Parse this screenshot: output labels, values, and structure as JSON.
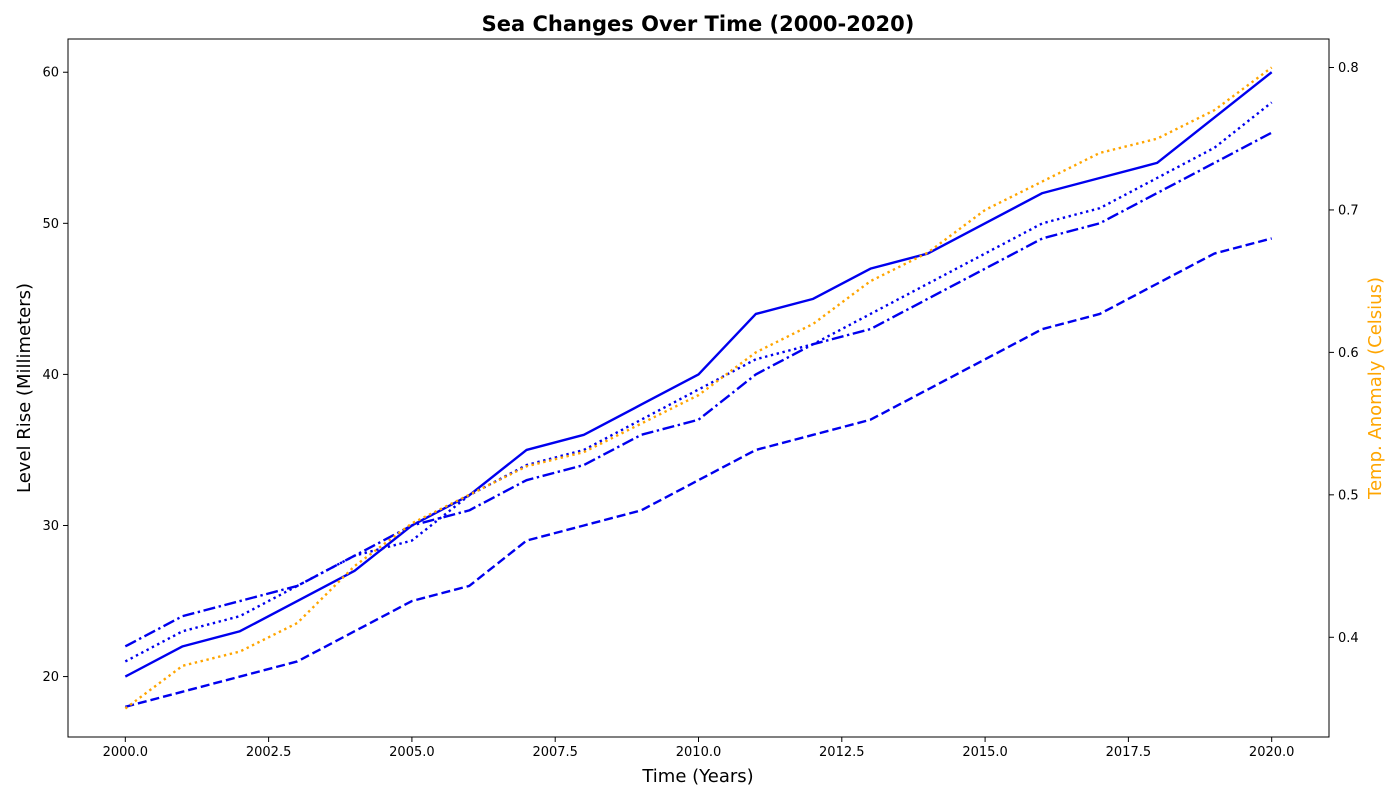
{
  "chart_data": {
    "type": "line",
    "title": "Sea Changes Over Time (2000-2020)",
    "xlabel": "Time (Years)",
    "ylabel": "Level Rise (Millimeters)",
    "ylabel_right": "Temp. Anomaly (Celsius)",
    "xlim": [
      1999,
      2021
    ],
    "ylim": [
      16,
      62.2
    ],
    "ylim_right": [
      0.33,
      0.82
    ],
    "x_ticks": [
      2000,
      2002.5,
      2005,
      2007.5,
      2010,
      2012.5,
      2015,
      2017.5,
      2020
    ],
    "x_tick_labels": [
      "2000.0",
      "2002.5",
      "2005.0",
      "2007.5",
      "2010.0",
      "2012.5",
      "2015.0",
      "2017.5",
      "2020.0"
    ],
    "y_ticks": [
      20,
      30,
      40,
      50,
      60
    ],
    "y_tick_labels": [
      "20",
      "30",
      "40",
      "50",
      "60"
    ],
    "y_ticks_right": [
      0.4,
      0.5,
      0.6,
      0.7,
      0.8
    ],
    "y_tick_labels_right": [
      "0.4",
      "0.5",
      "0.6",
      "0.7",
      "0.8"
    ],
    "grid": false,
    "x": [
      2000,
      2001,
      2002,
      2003,
      2004,
      2005,
      2006,
      2007,
      2008,
      2009,
      2010,
      2011,
      2012,
      2013,
      2014,
      2015,
      2016,
      2017,
      2018,
      2019,
      2020
    ],
    "series": [
      {
        "axis": "left",
        "color": "#0000ee",
        "dash": "solid",
        "values": [
          20,
          22,
          23,
          25,
          27,
          30,
          32,
          35,
          36,
          38,
          40,
          44,
          45,
          47,
          48,
          50,
          52,
          53,
          54,
          57,
          60
        ]
      },
      {
        "axis": "left",
        "color": "#0000ee",
        "dash": "dashed",
        "values": [
          18,
          19,
          20,
          21,
          23,
          25,
          26,
          29,
          30,
          31,
          33,
          35,
          36,
          37,
          39,
          41,
          43,
          44,
          46,
          48,
          49
        ]
      },
      {
        "axis": "left",
        "color": "#0000ee",
        "dash": "dotted",
        "values": [
          21,
          23,
          24,
          26,
          28,
          29,
          32,
          34,
          35,
          37,
          39,
          41,
          42,
          44,
          46,
          48,
          50,
          51,
          53,
          55,
          58
        ]
      },
      {
        "axis": "left",
        "color": "#0000ee",
        "dash": "dashdot",
        "values": [
          22,
          24,
          25,
          26,
          28,
          30,
          31,
          33,
          34,
          36,
          37,
          40,
          42,
          43,
          45,
          47,
          49,
          50,
          52,
          54,
          56
        ]
      },
      {
        "axis": "right",
        "color": "#ffa500",
        "dash": "dotted",
        "values": [
          0.35,
          0.38,
          0.39,
          0.41,
          0.45,
          0.48,
          0.5,
          0.52,
          0.53,
          0.55,
          0.57,
          0.6,
          0.62,
          0.65,
          0.67,
          0.7,
          0.72,
          0.74,
          0.75,
          0.77,
          0.8
        ]
      }
    ],
    "colors": {
      "left_axis": "#000000",
      "right_axis_label": "#ffa500"
    }
  }
}
